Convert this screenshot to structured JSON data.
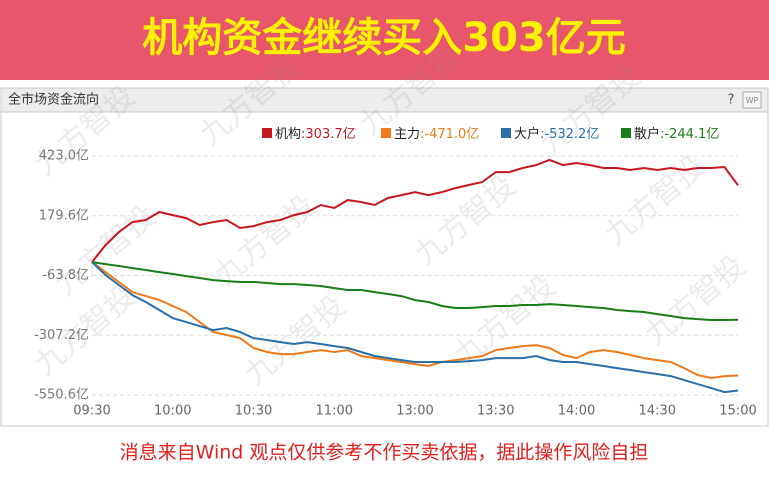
{
  "banner": {
    "title": "机构资金继续买入303亿元"
  },
  "panel": {
    "title": "全市场资金流向",
    "help": "?",
    "icon": "WP"
  },
  "chart_data": {
    "type": "line",
    "watermark": "九方智投",
    "categories": [
      "09:30",
      null,
      null,
      null,
      null,
      null,
      "10:00",
      null,
      null,
      null,
      null,
      null,
      "10:30",
      null,
      null,
      null,
      null,
      null,
      "11:00",
      null,
      null,
      null,
      null,
      null,
      "13:00",
      null,
      null,
      null,
      null,
      null,
      "13:30",
      null,
      null,
      null,
      null,
      null,
      "14:00",
      null,
      null,
      null,
      null,
      null,
      "14:30",
      null,
      null,
      null,
      null,
      null,
      "15:00"
    ],
    "ylim": [
      -579,
      578
    ],
    "yticks": [
      {
        "value": 423.0,
        "label": "423.0亿"
      },
      {
        "value": 179.6,
        "label": "179.6亿"
      },
      {
        "value": -63.8,
        "label": "-63.8亿"
      },
      {
        "value": -307.2,
        "label": "-307.2亿"
      },
      {
        "value": -550.6,
        "label": "-550.6亿"
      }
    ],
    "grid": true,
    "series": [
      {
        "name": "机构",
        "legend_label": ":303.7亿",
        "color": "#c8171e",
        "values": [
          -9,
          60.4,
          113.4,
          154.1,
          162.3,
          194.9,
          182.6,
          170.4,
          141.9,
          154.1,
          162.3,
          129.7,
          137.8,
          154.1,
          162.3,
          182.6,
          194.9,
          223.4,
          211.2,
          243.7,
          235.6,
          223.4,
          251.9,
          264.1,
          276.3,
          264.1,
          276.3,
          292.6,
          304.9,
          317.1,
          357.8,
          357.8,
          374.1,
          386.3,
          406.7,
          386.3,
          394.5,
          386.3,
          374.1,
          374.1,
          366,
          374.1,
          366,
          374.1,
          366,
          374.1,
          374.1,
          378.2,
          303.7
        ]
      },
      {
        "name": "主力",
        "legend_label": ":-471.0亿",
        "color": "#ee7a1a",
        "values": [
          -9,
          -49.6,
          -90.3,
          -131.1,
          -147.4,
          -163.7,
          -188.1,
          -212.5,
          -253.3,
          -294,
          -306.2,
          -318.5,
          -359.2,
          -375.5,
          -383.7,
          -383.7,
          -375.5,
          -367.4,
          -375.5,
          -367.4,
          -391.8,
          -400,
          -408.1,
          -416.2,
          -424.4,
          -432.5,
          -416.2,
          -408.1,
          -400,
          -391.8,
          -367.4,
          -359.2,
          -351.1,
          -347,
          -359.2,
          -387.7,
          -400,
          -375.5,
          -367.4,
          -375.5,
          -387.7,
          -400,
          -408.1,
          -416.2,
          -440.7,
          -469.2,
          -481.4,
          -473.3,
          -471
        ]
      },
      {
        "name": "大户",
        "legend_label": ":-532.2亿",
        "color": "#2a6fa8",
        "values": [
          -9,
          -61.8,
          -102.5,
          -143.3,
          -171.8,
          -204.4,
          -237,
          -253.3,
          -269.6,
          -285.9,
          -277.7,
          -294,
          -318.5,
          -326.6,
          -334.8,
          -342.9,
          -334.8,
          -342.9,
          -351.1,
          -359.2,
          -375.5,
          -391.8,
          -400,
          -408.1,
          -416.2,
          -416.2,
          -416.2,
          -416.2,
          -412.2,
          -408.1,
          -400,
          -400,
          -400,
          -391.8,
          -408.1,
          -416.2,
          -416.2,
          -424.4,
          -432.5,
          -440.7,
          -448.8,
          -457,
          -465.1,
          -473.3,
          -489.6,
          -505.9,
          -522.2,
          -538.5,
          -532.2
        ]
      },
      {
        "name": "散户",
        "legend_label": ":-244.1亿",
        "color": "#1a7d1a",
        "values": [
          -9,
          -17,
          -25.1,
          -33.3,
          -41.4,
          -49.6,
          -57.7,
          -65.9,
          -74,
          -82.2,
          -86.3,
          -90.3,
          -90.3,
          -94.4,
          -98.5,
          -98.5,
          -102.5,
          -106.6,
          -114.8,
          -122.9,
          -122.9,
          -131.1,
          -139.2,
          -147.4,
          -163.7,
          -171.8,
          -188.1,
          -196.2,
          -196.2,
          -192.2,
          -188.1,
          -188.1,
          -184,
          -184,
          -180,
          -184,
          -188.1,
          -192.2,
          -196.2,
          -204.4,
          -208.5,
          -212.5,
          -220.7,
          -228.8,
          -237,
          -241.1,
          -245.1,
          -245.1,
          -244.1
        ]
      }
    ]
  },
  "footer": {
    "text": "消息来自Wind  观点仅供参考不作买卖依据，据此操作风险自担"
  }
}
